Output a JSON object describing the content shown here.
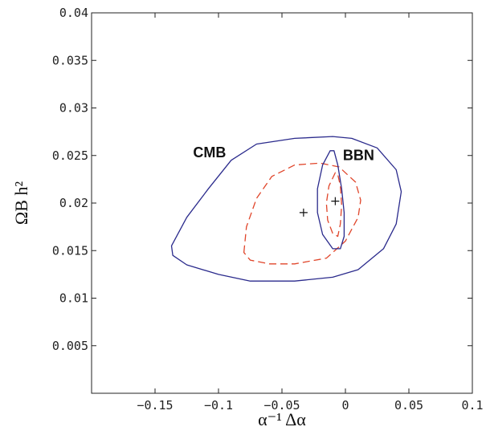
{
  "chart_data": {
    "type": "scatter",
    "title": "",
    "xlabel": "α⁻¹ Δα",
    "ylabel": "ΩB h²",
    "xlim": [
      -0.2,
      0.1
    ],
    "ylim": [
      0.0,
      0.04
    ],
    "grid": false,
    "x_ticks": [
      {
        "value": -0.15,
        "label": "−0.15"
      },
      {
        "value": -0.1,
        "label": "−0.1"
      },
      {
        "value": -0.05,
        "label": "−0.05"
      },
      {
        "value": 0,
        "label": "0"
      },
      {
        "value": 0.05,
        "label": "0.05"
      },
      {
        "value": 0.1,
        "label": "0.1"
      }
    ],
    "y_ticks": [
      {
        "value": 0.005,
        "label": "0.005"
      },
      {
        "value": 0.01,
        "label": "0.01"
      },
      {
        "value": 0.015,
        "label": "0.015"
      },
      {
        "value": 0.02,
        "label": "0.02"
      },
      {
        "value": 0.025,
        "label": "0.025"
      },
      {
        "value": 0.03,
        "label": "0.03"
      },
      {
        "value": 0.035,
        "label": "0.035"
      },
      {
        "value": 0.04,
        "label": "0.04"
      }
    ],
    "series": [
      {
        "style": "solid",
        "color": "#2a2a8c",
        "points": [
          [
            -0.137,
            0.0155
          ],
          [
            -0.125,
            0.0185
          ],
          [
            -0.108,
            0.0215
          ],
          [
            -0.09,
            0.0245
          ],
          [
            -0.07,
            0.0262
          ],
          [
            -0.04,
            0.0268
          ],
          [
            -0.01,
            0.027
          ],
          [
            0.005,
            0.0268
          ],
          [
            0.025,
            0.0258
          ],
          [
            0.04,
            0.0235
          ],
          [
            0.044,
            0.0212
          ],
          [
            0.04,
            0.0178
          ],
          [
            0.03,
            0.0152
          ],
          [
            0.01,
            0.013
          ],
          [
            -0.01,
            0.0122
          ],
          [
            -0.04,
            0.0118
          ],
          [
            -0.075,
            0.0118
          ],
          [
            -0.1,
            0.0125
          ],
          [
            -0.125,
            0.0135
          ],
          [
            -0.136,
            0.0145
          ],
          [
            -0.137,
            0.0155
          ]
        ]
      },
      {
        "style": "dashed",
        "color": "#e0452a",
        "points": [
          [
            -0.08,
            0.0148
          ],
          [
            -0.078,
            0.0175
          ],
          [
            -0.07,
            0.0205
          ],
          [
            -0.058,
            0.0228
          ],
          [
            -0.04,
            0.024
          ],
          [
            -0.02,
            0.0242
          ],
          [
            -0.005,
            0.0238
          ],
          [
            0.008,
            0.0222
          ],
          [
            0.012,
            0.0203
          ],
          [
            0.01,
            0.0185
          ],
          [
            0.0,
            0.016
          ],
          [
            -0.015,
            0.0142
          ],
          [
            -0.04,
            0.0136
          ],
          [
            -0.06,
            0.0136
          ],
          [
            -0.075,
            0.014
          ],
          [
            -0.08,
            0.0148
          ]
        ]
      },
      {
        "style": "solid",
        "color": "#2a2a8c",
        "points": [
          [
            -0.012,
            0.0255
          ],
          [
            -0.018,
            0.024
          ],
          [
            -0.022,
            0.0215
          ],
          [
            -0.022,
            0.019
          ],
          [
            -0.018,
            0.0167
          ],
          [
            -0.01,
            0.0152
          ],
          [
            -0.004,
            0.0152
          ],
          [
            -0.001,
            0.0165
          ],
          [
            -0.001,
            0.019
          ],
          [
            -0.003,
            0.0215
          ],
          [
            -0.006,
            0.024
          ],
          [
            -0.009,
            0.0255
          ],
          [
            -0.012,
            0.0255
          ]
        ]
      },
      {
        "style": "dashed",
        "color": "#e0452a",
        "points": [
          [
            -0.008,
            0.0232
          ],
          [
            -0.013,
            0.0218
          ],
          [
            -0.015,
            0.02
          ],
          [
            -0.014,
            0.0182
          ],
          [
            -0.01,
            0.0168
          ],
          [
            -0.006,
            0.0165
          ],
          [
            -0.004,
            0.0178
          ],
          [
            -0.003,
            0.0198
          ],
          [
            -0.004,
            0.0218
          ],
          [
            -0.006,
            0.023
          ],
          [
            -0.008,
            0.0232
          ]
        ]
      }
    ],
    "markers": [
      {
        "x": -0.033,
        "y": 0.019,
        "symbol": "+"
      },
      {
        "x": -0.008,
        "y": 0.0202,
        "symbol": "+"
      }
    ],
    "annotations": [
      {
        "text": "CMB",
        "x": -0.12,
        "y": 0.0248
      },
      {
        "text": "BBN",
        "x": -0.002,
        "y": 0.0245
      }
    ]
  }
}
